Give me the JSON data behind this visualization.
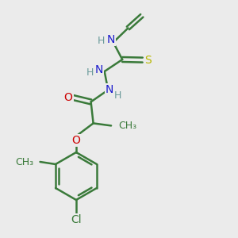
{
  "bg_color": "#ebebeb",
  "bond_color": "#3a7a3a",
  "N_color": "#1a1acc",
  "O_color": "#cc0000",
  "S_color": "#b8b800",
  "Cl_color": "#3a7a3a",
  "H_color": "#6a9a9a",
  "line_width": 1.8,
  "font_size": 10,
  "figsize": [
    3.0,
    3.0
  ],
  "dpi": 100,
  "xlim": [
    0,
    10
  ],
  "ylim": [
    0,
    10
  ]
}
